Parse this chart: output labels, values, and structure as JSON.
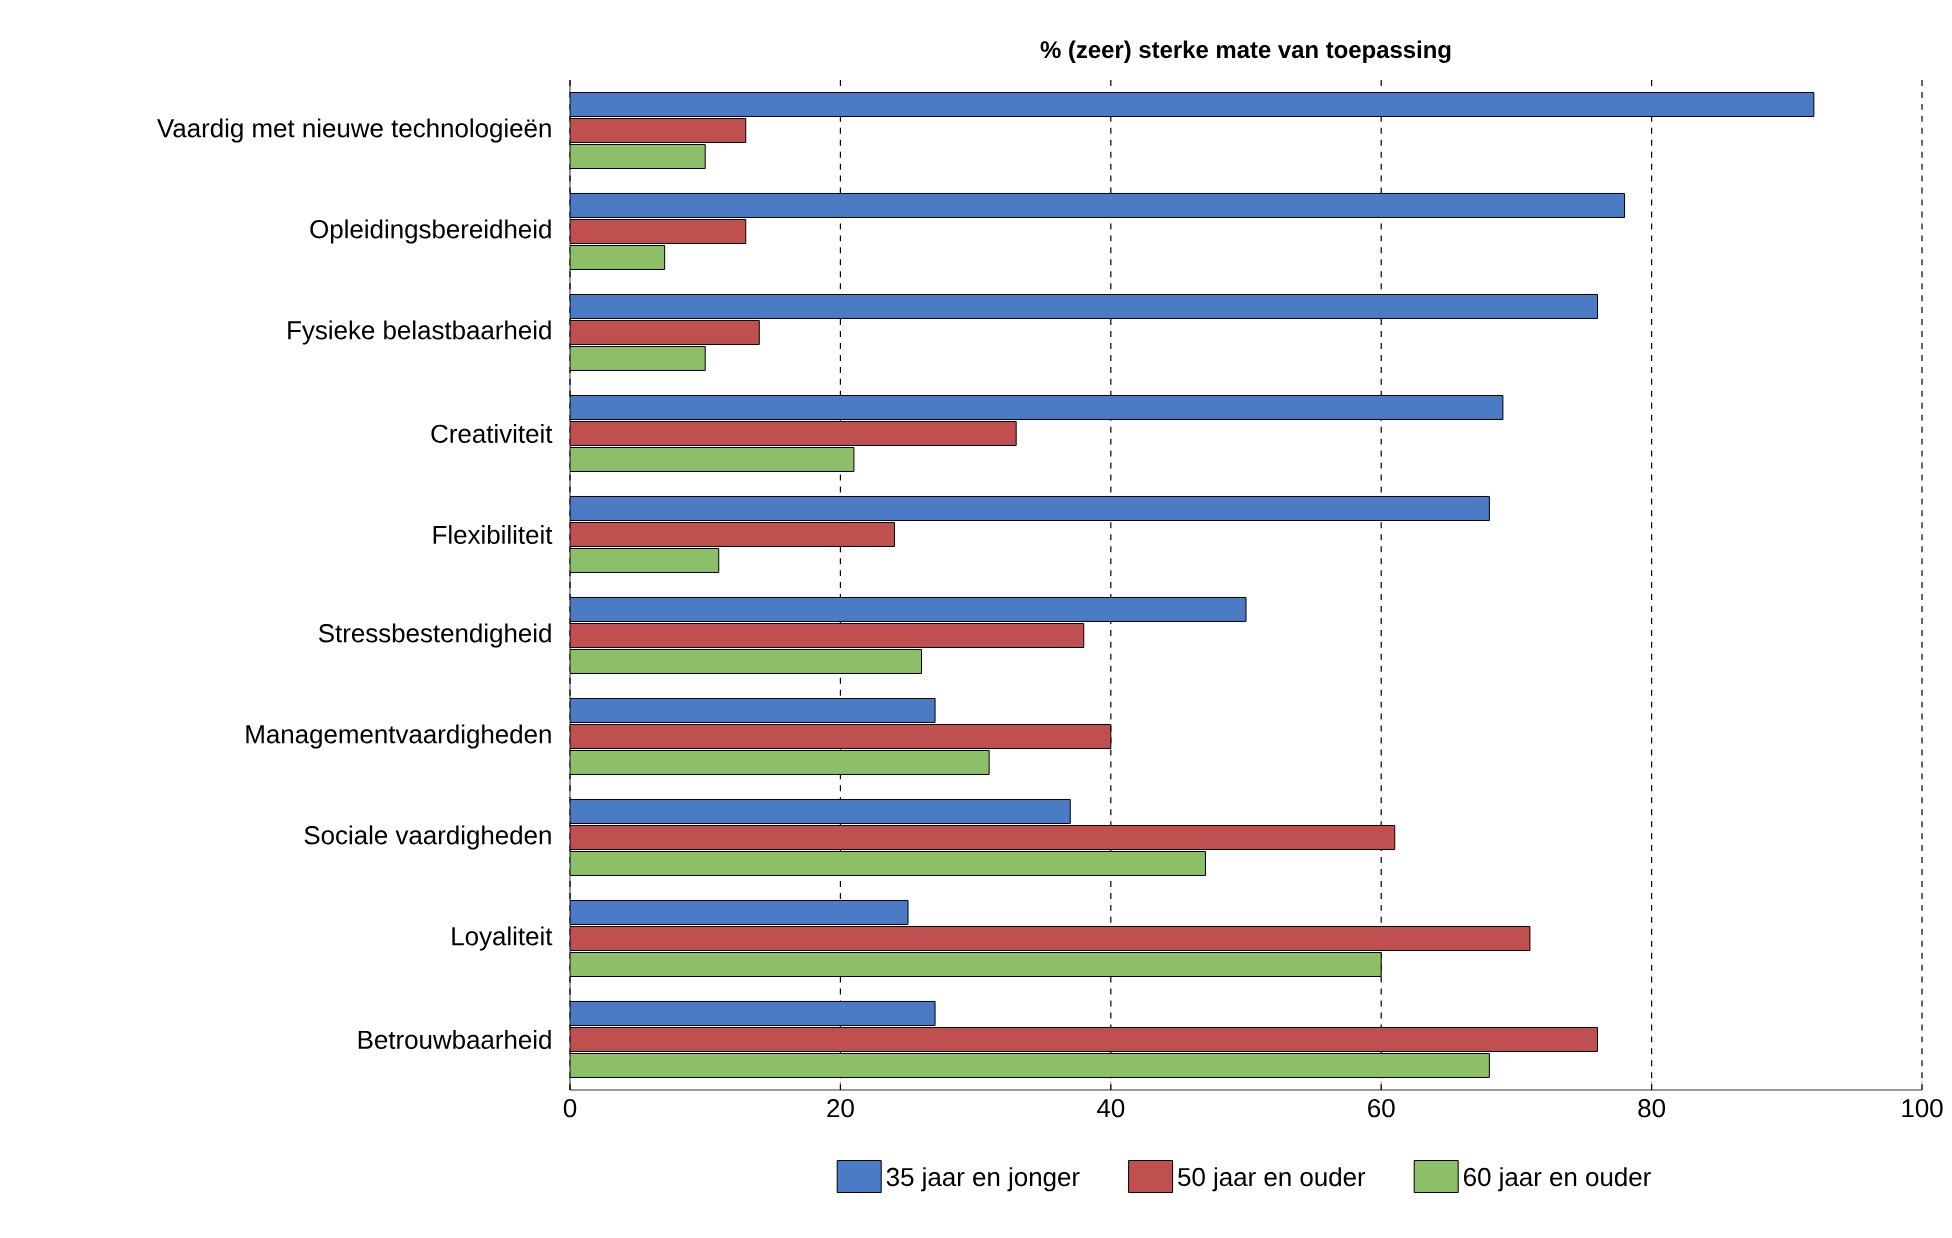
{
  "chart_data": {
    "type": "bar",
    "orientation": "horizontal",
    "title": "% (zeer) sterke mate van toepassing",
    "categories": [
      "Vaardig met nieuwe technologieën",
      "Opleidingsbereidheid",
      "Fysieke belastbaarheid",
      "Creativiteit",
      "Flexibiliteit",
      "Stressbestendigheid",
      "Managementvaardigheden",
      "Sociale vaardigheden",
      "Loyaliteit",
      "Betrouwbaarheid"
    ],
    "series": [
      {
        "name": "35 jaar en jonger",
        "color": "#4a7bc4",
        "values": [
          92,
          78,
          76,
          69,
          68,
          50,
          27,
          37,
          25,
          27
        ]
      },
      {
        "name": "50 jaar en ouder",
        "color": "#c0504f",
        "values": [
          13,
          13,
          14,
          33,
          24,
          38,
          40,
          61,
          71,
          76
        ]
      },
      {
        "name": "60 jaar en ouder",
        "color": "#8dbf69",
        "values": [
          10,
          7,
          10,
          21,
          11,
          26,
          31,
          47,
          60,
          68
        ]
      }
    ],
    "xlim": [
      0,
      100
    ],
    "xticks": [
      0,
      20,
      40,
      60,
      80,
      100
    ],
    "grid": "x",
    "legend": "bottom"
  }
}
